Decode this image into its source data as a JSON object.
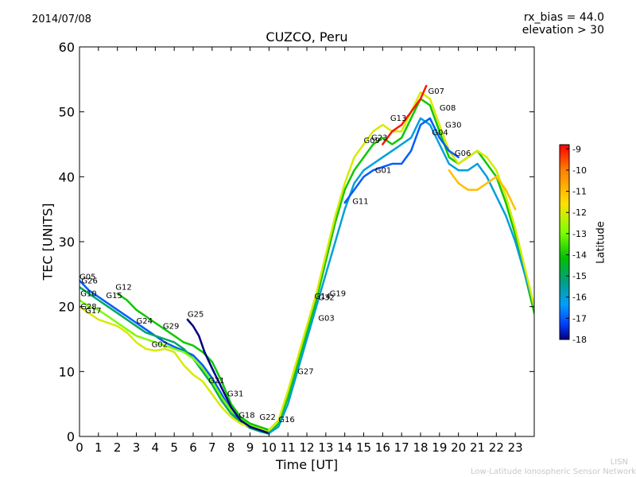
{
  "header": {
    "date": "2014/07/08",
    "rx_bias": "rx_bias = 44.0",
    "elevation": "elevation > 30"
  },
  "footer": {
    "credit_short": "LISN",
    "credit_long": "Low-Latitude Ionospheric Sensor Network"
  },
  "chart_data": {
    "type": "line",
    "title": "CUZCO, Peru",
    "xlabel": "Time [UT]",
    "ylabel": "TEC [UNITS]",
    "xlim": [
      0,
      24
    ],
    "ylim": [
      0,
      60
    ],
    "xticks": [
      "0",
      "1",
      "2",
      "3",
      "4",
      "5",
      "6",
      "7",
      "8",
      "9",
      "10",
      "11",
      "12",
      "13",
      "14",
      "15",
      "16",
      "17",
      "18",
      "19",
      "20",
      "21",
      "22",
      "23"
    ],
    "yticks": [
      "0",
      "10",
      "20",
      "30",
      "40",
      "50",
      "60"
    ],
    "colorbar": {
      "label": "Latitude",
      "range": [
        -18,
        -8.8
      ],
      "ticks": [
        "-9",
        "-10",
        "-11",
        "-12",
        "-13",
        "-14",
        "-15",
        "-16",
        "-17",
        "-18"
      ]
    },
    "series": [
      {
        "x": [
          0,
          0.5,
          1,
          1.5,
          2,
          2.5,
          3,
          3.5,
          4,
          4.5,
          5,
          5.5,
          6,
          6.5,
          7,
          7.5,
          8,
          8.5,
          9,
          9.5,
          10
        ],
        "y": [
          24,
          22.5,
          21.5,
          20.5,
          19.5,
          18.5,
          17.5,
          16.5,
          15.5,
          14.5,
          13.8,
          13.2,
          12.5,
          11,
          9,
          6.5,
          4,
          2.5,
          1.5,
          1,
          0.5
        ],
        "lat": -17
      },
      {
        "x": [
          0,
          0.5,
          1,
          1.5,
          2,
          2.5,
          3,
          3.5,
          4,
          4.5,
          5,
          5.5,
          6,
          6.5,
          7,
          7.5,
          8,
          8.5,
          9,
          9.5,
          10
        ],
        "y": [
          23,
          22,
          21,
          20,
          19,
          18,
          17,
          16,
          15.5,
          15,
          14.5,
          13.5,
          12,
          10,
          8,
          5.5,
          3.5,
          2.2,
          1.3,
          0.8,
          0.4
        ],
        "lat": -15
      },
      {
        "x": [
          0,
          0.5,
          1,
          1.5,
          2,
          2.5,
          3,
          3.5,
          4,
          4.5,
          5,
          5.5,
          6,
          6.5,
          7,
          7.5,
          8,
          8.5,
          9,
          9.5,
          10
        ],
        "y": [
          21,
          20,
          19.5,
          18.5,
          17.5,
          16.5,
          15.5,
          15,
          14.5,
          14,
          13.5,
          13,
          12,
          10.5,
          8.5,
          6,
          4,
          2.8,
          1.8,
          1.2,
          0.8
        ],
        "lat": -13
      },
      {
        "x": [
          0,
          0.5,
          1,
          1.5,
          2,
          2.5,
          3,
          3.5,
          4,
          4.5,
          5,
          5.5,
          6,
          6.5,
          7,
          7.5,
          8,
          8.5,
          9,
          9.5,
          10
        ],
        "y": [
          20,
          19,
          18,
          17.5,
          17,
          16,
          14.5,
          13.5,
          13.2,
          13.5,
          13,
          11,
          9.5,
          8.5,
          6.5,
          4.5,
          3,
          2,
          1.5,
          1.2,
          1
        ],
        "lat": -12
      },
      {
        "x": [
          2,
          2.5,
          3,
          3.5,
          4,
          4.5,
          5,
          5.5,
          6,
          6.5,
          7,
          7.5,
          8,
          8.5,
          9,
          9.5,
          10
        ],
        "y": [
          22,
          21,
          19.5,
          18.5,
          17.5,
          16.5,
          15.5,
          14.5,
          14,
          13,
          11.5,
          8.5,
          5,
          3,
          2,
          1.5,
          1
        ],
        "lat": -14
      },
      {
        "x": [
          5.7,
          6,
          6.3,
          6.6,
          7,
          7.5,
          8,
          8.5,
          9,
          9.5,
          10
        ],
        "y": [
          18,
          17,
          15.5,
          13,
          10.5,
          7.5,
          4.5,
          2.5,
          1.5,
          1,
          0.5
        ],
        "lat": -18
      },
      {
        "x": [
          10,
          10.5,
          11,
          11.5,
          12,
          12.5,
          13,
          13.5,
          14,
          14.5,
          15,
          15.5,
          16,
          16.5,
          17,
          17.5,
          18,
          18.5,
          19,
          19.5,
          20,
          20.5,
          21,
          21.5,
          22,
          22.5,
          23,
          23.5,
          24
        ],
        "y": [
          0.5,
          2,
          6,
          11,
          16,
          21,
          27,
          33,
          38,
          41,
          43,
          45,
          46,
          45,
          46,
          49,
          52,
          51,
          47,
          43,
          42,
          43,
          44,
          42,
          40,
          36,
          31,
          25,
          19
        ],
        "lat": -14
      },
      {
        "x": [
          10,
          10.5,
          11,
          11.5,
          12,
          12.5,
          13,
          13.5,
          14,
          14.5,
          15,
          15.5,
          16,
          16.5,
          17,
          17.5,
          18,
          18.5,
          19,
          19.5,
          20,
          20.5,
          21,
          21.5,
          22,
          22.5,
          23,
          23.5,
          24
        ],
        "y": [
          0.5,
          1.5,
          5,
          10,
          15,
          20,
          25,
          30,
          35,
          39,
          41,
          42,
          43,
          44,
          45,
          46,
          49,
          48,
          45,
          42,
          41,
          41,
          42,
          40,
          37,
          34,
          30,
          25,
          20
        ],
        "lat": -16
      },
      {
        "x": [
          10,
          10.5,
          11,
          11.5,
          12,
          12.5,
          13,
          13.5,
          14,
          14.5,
          15,
          15.5,
          16,
          16.5,
          17,
          17.5,
          18,
          18.5,
          19,
          19.5,
          20,
          20.5,
          21,
          21.5,
          22,
          22.5,
          23,
          23.5,
          24
        ],
        "y": [
          1,
          2.5,
          7,
          12,
          17,
          22,
          28,
          34,
          39,
          43,
          45,
          47,
          48,
          47,
          47,
          50,
          53,
          52,
          48,
          44,
          42,
          43,
          44,
          43,
          41,
          37,
          32,
          26,
          20
        ],
        "lat": -12
      },
      {
        "x": [
          14,
          14.5,
          15,
          15.5,
          16,
          16.5,
          17,
          17.5,
          18,
          18.5,
          19,
          19.5,
          20
        ],
        "y": [
          36,
          38,
          40,
          41,
          41.5,
          42,
          42,
          44,
          48,
          49,
          46,
          44,
          43
        ],
        "lat": -17
      },
      {
        "x": [
          16,
          16.5,
          17,
          17.5,
          18,
          18.3
        ],
        "y": [
          45,
          47,
          48,
          50,
          52,
          54
        ],
        "lat": -9
      },
      {
        "x": [
          19.5,
          20,
          20.5,
          21,
          21.5,
          22,
          22.5,
          23
        ],
        "y": [
          41,
          39,
          38,
          38,
          39,
          40,
          38,
          35
        ],
        "lat": -11
      }
    ],
    "point_labels": [
      {
        "name": "G05",
        "x": 0,
        "y": 24.2
      },
      {
        "name": "G26",
        "x": 0.1,
        "y": 23.6
      },
      {
        "name": "G10",
        "x": 0.05,
        "y": 21.6
      },
      {
        "name": "G28",
        "x": 0.05,
        "y": 19.6
      },
      {
        "name": "G17",
        "x": 0.3,
        "y": 19
      },
      {
        "name": "G15",
        "x": 1.4,
        "y": 21.3
      },
      {
        "name": "G12",
        "x": 1.9,
        "y": 22.6
      },
      {
        "name": "G24",
        "x": 3,
        "y": 17.4
      },
      {
        "name": "G29",
        "x": 4.4,
        "y": 16.6
      },
      {
        "name": "G02",
        "x": 3.8,
        "y": 13.8
      },
      {
        "name": "G25",
        "x": 5.7,
        "y": 18.4
      },
      {
        "name": "G21",
        "x": 6.8,
        "y": 8.2
      },
      {
        "name": "G31",
        "x": 7.8,
        "y": 6.2
      },
      {
        "name": "G18",
        "x": 8.4,
        "y": 2.9
      },
      {
        "name": "G22",
        "x": 9.5,
        "y": 2.6
      },
      {
        "name": "G16",
        "x": 10.5,
        "y": 2.2
      },
      {
        "name": "G27",
        "x": 11.5,
        "y": 9.6
      },
      {
        "name": "G03",
        "x": 12.6,
        "y": 17.8
      },
      {
        "name": "G14",
        "x": 12.4,
        "y": 21.2
      },
      {
        "name": "G32",
        "x": 12.6,
        "y": 21
      },
      {
        "name": "G19",
        "x": 13.2,
        "y": 21.6
      },
      {
        "name": "G11",
        "x": 14.4,
        "y": 35.8
      },
      {
        "name": "G01",
        "x": 15.6,
        "y": 40.6
      },
      {
        "name": "G09",
        "x": 15,
        "y": 45.2
      },
      {
        "name": "G23",
        "x": 15.4,
        "y": 45.6
      },
      {
        "name": "G13",
        "x": 16.4,
        "y": 48.6
      },
      {
        "name": "G07",
        "x": 18.4,
        "y": 52.8
      },
      {
        "name": "G08",
        "x": 19,
        "y": 50.2
      },
      {
        "name": "G30",
        "x": 19.3,
        "y": 47.6
      },
      {
        "name": "G04",
        "x": 18.6,
        "y": 46.4
      },
      {
        "name": "G06",
        "x": 19.8,
        "y": 43.2
      }
    ]
  }
}
